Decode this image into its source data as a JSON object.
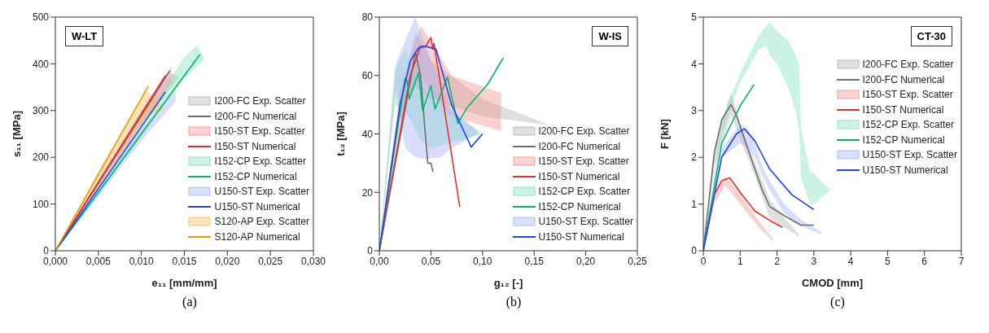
{
  "chart_data": [
    {
      "type": "line",
      "title": "W-LT",
      "xlabel": "e₁₁ [mm/mm]",
      "ylabel": "s₁₁ [MPa]",
      "annotations": [
        "(a)"
      ],
      "legend": "bottom right",
      "xlim": [
        0,
        0.03
      ],
      "xticks": [
        {
          "value": 0,
          "label": "0,000"
        },
        {
          "value": 0.005,
          "label": "0,005"
        },
        {
          "value": 0.01,
          "label": "0,010"
        },
        {
          "value": 0.015,
          "label": "0,015"
        },
        {
          "value": 0.02,
          "label": "0,020"
        },
        {
          "value": 0.025,
          "label": "0,025"
        },
        {
          "value": 0.03,
          "label": "0,030"
        }
      ],
      "ylim": [
        0,
        500
      ],
      "yticks": [
        0,
        100,
        200,
        300,
        400,
        500
      ],
      "series": [
        {
          "name": "I200-FC Exp. Scatter",
          "type": "line",
          "color": "#b0b0b0",
          "x": [
            0,
            0.005,
            0.01,
            0.0135,
            0.0143
          ],
          "values": [
            null,
            null,
            null,
            null,
            null
          ],
          "lower": [
            0,
            135,
            270,
            350,
            370
          ],
          "upper": [
            0,
            150,
            295,
            380,
            375
          ]
        },
        {
          "name": "I200-FC Numerical",
          "type": "line",
          "color": "#6e6e6e",
          "x": [
            0,
            0.0133
          ],
          "values": [
            0,
            385
          ]
        },
        {
          "name": "I150-ST Exp. Scatter",
          "type": "line",
          "color": "#f28b8b",
          "x": [
            0,
            0.005,
            0.01,
            0.0135
          ],
          "values": [
            null,
            null,
            null,
            null
          ],
          "lower": [
            0,
            135,
            270,
            360
          ],
          "upper": [
            0,
            150,
            300,
            395
          ]
        },
        {
          "name": "I150-ST Numerical",
          "type": "line",
          "color": "#ee2a2a",
          "x": [
            0,
            0.0128
          ],
          "values": [
            0,
            375
          ]
        },
        {
          "name": "I152-CP Exp. Scatter",
          "type": "line",
          "color": "#7de0b8",
          "x": [
            0,
            0.005,
            0.01,
            0.015,
            0.0165,
            0.0173
          ],
          "values": [
            null,
            null,
            null,
            null,
            null,
            null
          ],
          "lower": [
            0,
            120,
            245,
            370,
            395,
            410
          ],
          "upper": [
            0,
            135,
            270,
            415,
            440,
            412
          ]
        },
        {
          "name": "I152-CP Numerical",
          "type": "line",
          "color": "#00b870",
          "x": [
            0,
            0.0168
          ],
          "values": [
            0,
            420
          ]
        },
        {
          "name": "U150-ST Exp. Scatter",
          "type": "line",
          "color": "#9fb0f5",
          "x": [
            0,
            0.005,
            0.01,
            0.014
          ],
          "values": [
            null,
            null,
            null,
            null
          ],
          "lower": [
            0,
            115,
            235,
            320
          ],
          "upper": [
            0,
            130,
            260,
            345
          ]
        },
        {
          "name": "U150-ST Numerical",
          "type": "line",
          "color": "#1f45f0",
          "x": [
            0,
            0.0128
          ],
          "values": [
            0,
            340
          ]
        },
        {
          "name": "S120-AP Exp. Scatter",
          "type": "line",
          "color": "#f5b85a",
          "x": [
            0,
            0.005,
            0.0105,
            0.0125
          ],
          "values": [
            null,
            null,
            null,
            null
          ],
          "lower": [
            0,
            140,
            290,
            300
          ],
          "upper": [
            0,
            170,
            345,
            310
          ]
        },
        {
          "name": "S120-AP Numerical",
          "type": "line",
          "color": "#f59a00",
          "x": [
            0,
            0.0108
          ],
          "values": [
            0,
            352
          ]
        }
      ]
    },
    {
      "type": "line",
      "title": "W-IS",
      "xlabel": "g₁₂ [-]",
      "ylabel": "t₁₂ [MPa]",
      "annotations": [
        "(b)"
      ],
      "legend": "bottom right",
      "xlim": [
        0,
        0.25
      ],
      "xticks": [
        {
          "value": 0,
          "label": "0,00"
        },
        {
          "value": 0.05,
          "label": "0,05"
        },
        {
          "value": 0.1,
          "label": "0,10"
        },
        {
          "value": 0.15,
          "label": "0,15"
        },
        {
          "value": 0.2,
          "label": "0,20"
        },
        {
          "value": 0.25,
          "label": "0,25"
        }
      ],
      "ylim": [
        0,
        80
      ],
      "yticks": [
        0,
        20,
        40,
        60,
        80
      ],
      "series": [
        {
          "name": "I200-FC Exp. Scatter",
          "type": "line",
          "color": "#b0b0b0",
          "x": [
            0,
            0.03,
            0.035,
            0.05,
            0.1,
            0.165
          ],
          "values": [
            null,
            null,
            null,
            null,
            null,
            null
          ],
          "lower": [
            0,
            55,
            56,
            52,
            46,
            43
          ],
          "upper": [
            0,
            68,
            75,
            65,
            52,
            43
          ]
        },
        {
          "name": "I200-FC Numerical",
          "type": "line",
          "color": "#6e6e6e",
          "x": [
            0,
            0.035,
            0.04,
            0.045,
            0.047,
            0.05,
            0.052
          ],
          "values": [
            0,
            68,
            60,
            38,
            30,
            30,
            27
          ]
        },
        {
          "name": "I150-ST Exp. Scatter",
          "type": "line",
          "color": "#f28b8b",
          "x": [
            0,
            0.02,
            0.04,
            0.05,
            0.07,
            0.118
          ],
          "values": [
            null,
            null,
            null,
            null,
            null,
            null
          ],
          "lower": [
            0,
            45,
            60,
            54,
            46,
            41
          ],
          "upper": [
            0,
            55,
            77,
            72,
            60,
            54
          ]
        },
        {
          "name": "I150-ST Numerical",
          "type": "line",
          "color": "#ee2a2a",
          "x": [
            0,
            0.03,
            0.04,
            0.045,
            0.05,
            0.052,
            0.053,
            0.078
          ],
          "values": [
            0,
            60,
            70,
            70,
            73,
            69,
            71,
            15
          ]
        },
        {
          "name": "I152-CP Exp. Scatter",
          "type": "line",
          "color": "#7de0b8",
          "x": [
            0,
            0.015,
            0.025,
            0.04,
            0.05,
            0.07,
            0.1
          ],
          "values": [
            null,
            null,
            null,
            null,
            null,
            null,
            null
          ],
          "lower": [
            0,
            50,
            48,
            38,
            35,
            37,
            40
          ],
          "upper": [
            0,
            62,
            69,
            57,
            53,
            48,
            40
          ]
        },
        {
          "name": "I152-CP Numerical",
          "type": "line",
          "color": "#00b870",
          "x": [
            0,
            0.025,
            0.027,
            0.029,
            0.038,
            0.042,
            0.05,
            0.054,
            0.066,
            0.076,
            0.085,
            0.105,
            0.12
          ],
          "values": [
            0,
            59,
            58,
            52,
            61,
            48,
            56.5,
            48.5,
            59.5,
            43.5,
            49,
            57,
            66
          ]
        },
        {
          "name": "U150-ST Exp. Scatter",
          "type": "line",
          "color": "#9fb0f5",
          "x": [
            0,
            0.016,
            0.025,
            0.035,
            0.045,
            0.06,
            0.07,
            0.095
          ],
          "values": [
            null,
            null,
            null,
            null,
            null,
            null,
            null,
            null
          ],
          "lower": [
            0,
            55,
            35,
            32,
            31.5,
            32,
            35,
            40
          ],
          "upper": [
            0,
            64,
            72,
            80,
            70,
            56,
            48,
            41
          ]
        },
        {
          "name": "U150-ST Numerical",
          "type": "line",
          "color": "#1f45f0",
          "x": [
            0,
            0.02,
            0.03,
            0.038,
            0.045,
            0.055,
            0.07,
            0.089,
            0.1
          ],
          "values": [
            0,
            50,
            65,
            69.5,
            70,
            69,
            50,
            35.5,
            40
          ]
        }
      ]
    },
    {
      "type": "line",
      "title": "CT-30",
      "xlabel": "CMOD [mm]",
      "ylabel": "F [kN]",
      "annotations": [
        "(c)"
      ],
      "legend": "top right",
      "xlim": [
        0,
        7
      ],
      "xticks": [
        0,
        1,
        2,
        3,
        4,
        5,
        6,
        7
      ],
      "ylim": [
        0,
        5
      ],
      "yticks": [
        0,
        1,
        2,
        3,
        4,
        5
      ],
      "series": [
        {
          "name": "I200-FC Exp. Scatter",
          "type": "line",
          "color": "#b0b0b0",
          "x": [
            0,
            0.3,
            0.75,
            1,
            1.4,
            1.8,
            2.2,
            2.6
          ],
          "values": [
            null,
            null,
            null,
            null,
            null,
            null,
            null,
            null
          ],
          "lower": [
            0,
            1.8,
            2.9,
            2.4,
            1.6,
            0.7,
            0.5,
            0.3
          ],
          "upper": [
            0,
            2.2,
            3.4,
            2.7,
            1.9,
            1.1,
            0.7,
            0.35
          ]
        },
        {
          "name": "I200-FC Numerical",
          "type": "line",
          "color": "#6e6e6e",
          "x": [
            0,
            0.3,
            0.5,
            0.75,
            0.9,
            1.2,
            1.6,
            1.8,
            2.2,
            2.65,
            3
          ],
          "values": [
            0,
            2.1,
            2.8,
            3.13,
            2.9,
            2.2,
            1.3,
            0.95,
            0.75,
            0.55,
            0.55
          ]
        },
        {
          "name": "I150-ST Exp. Scatter",
          "type": "line",
          "color": "#f28b8b",
          "x": [
            0,
            0.3,
            0.6,
            1,
            1.5,
            1.9
          ],
          "values": [
            null,
            null,
            null,
            null,
            null,
            null
          ],
          "lower": [
            0,
            1,
            1.4,
            1,
            0.5,
            0.2
          ],
          "upper": [
            0,
            1.2,
            1.6,
            1.2,
            0.65,
            0.25
          ]
        },
        {
          "name": "I150-ST Numerical",
          "type": "line",
          "color": "#ee2a2a",
          "x": [
            0,
            0.3,
            0.5,
            0.72,
            1,
            1.4,
            1.8,
            2.15
          ],
          "values": [
            0,
            1.2,
            1.5,
            1.56,
            1.25,
            0.85,
            0.65,
            0.5
          ]
        },
        {
          "name": "I152-CP Exp. Scatter",
          "type": "line",
          "color": "#7de0b8",
          "x": [
            0,
            0.5,
            1,
            1.5,
            1.7,
            1.8,
            2,
            2.3,
            2.5,
            2.6,
            2.65,
            2.9,
            3,
            3.45
          ],
          "values": [
            null,
            null,
            null,
            null,
            null,
            null,
            null,
            null,
            null,
            null,
            null,
            null,
            null,
            null
          ],
          "lower": [
            0,
            2.5,
            3.6,
            4.3,
            4.4,
            4.2,
            4,
            3.5,
            3,
            2.6,
            1.55,
            1,
            1,
            1.3
          ],
          "upper": [
            0,
            2.8,
            3.8,
            4.6,
            4.8,
            4.9,
            4.7,
            4.5,
            4.2,
            4,
            2.6,
            1.7,
            1.65,
            1.3
          ]
        },
        {
          "name": "I152-CP Numerical",
          "type": "line",
          "color": "#00b870",
          "x": [
            0,
            0.5,
            1,
            1.38
          ],
          "values": [
            0,
            2.3,
            3.1,
            3.56
          ]
        },
        {
          "name": "U150-ST Exp. Scatter",
          "type": "line",
          "color": "#9fb0f5",
          "x": [
            0,
            0.5,
            1,
            1.2,
            1.4,
            1.6,
            1.8,
            2.2,
            2.6,
            3.2
          ],
          "values": [
            null,
            null,
            null,
            null,
            null,
            null,
            null,
            null,
            null,
            null
          ],
          "lower": [
            0,
            2,
            2.3,
            2.2,
            2,
            1.6,
            1.3,
            0.8,
            0.55,
            0.35
          ],
          "upper": [
            0,
            2.2,
            2.7,
            2.6,
            2.3,
            1.8,
            1.5,
            1,
            0.7,
            0.4
          ]
        },
        {
          "name": "U150-ST Numerical",
          "type": "line",
          "color": "#1f45f0",
          "x": [
            0,
            0.5,
            0.9,
            1.12,
            1.4,
            1.8,
            2.4,
            3
          ],
          "values": [
            0,
            2,
            2.5,
            2.61,
            2.35,
            1.75,
            1.2,
            0.88
          ]
        }
      ]
    }
  ]
}
